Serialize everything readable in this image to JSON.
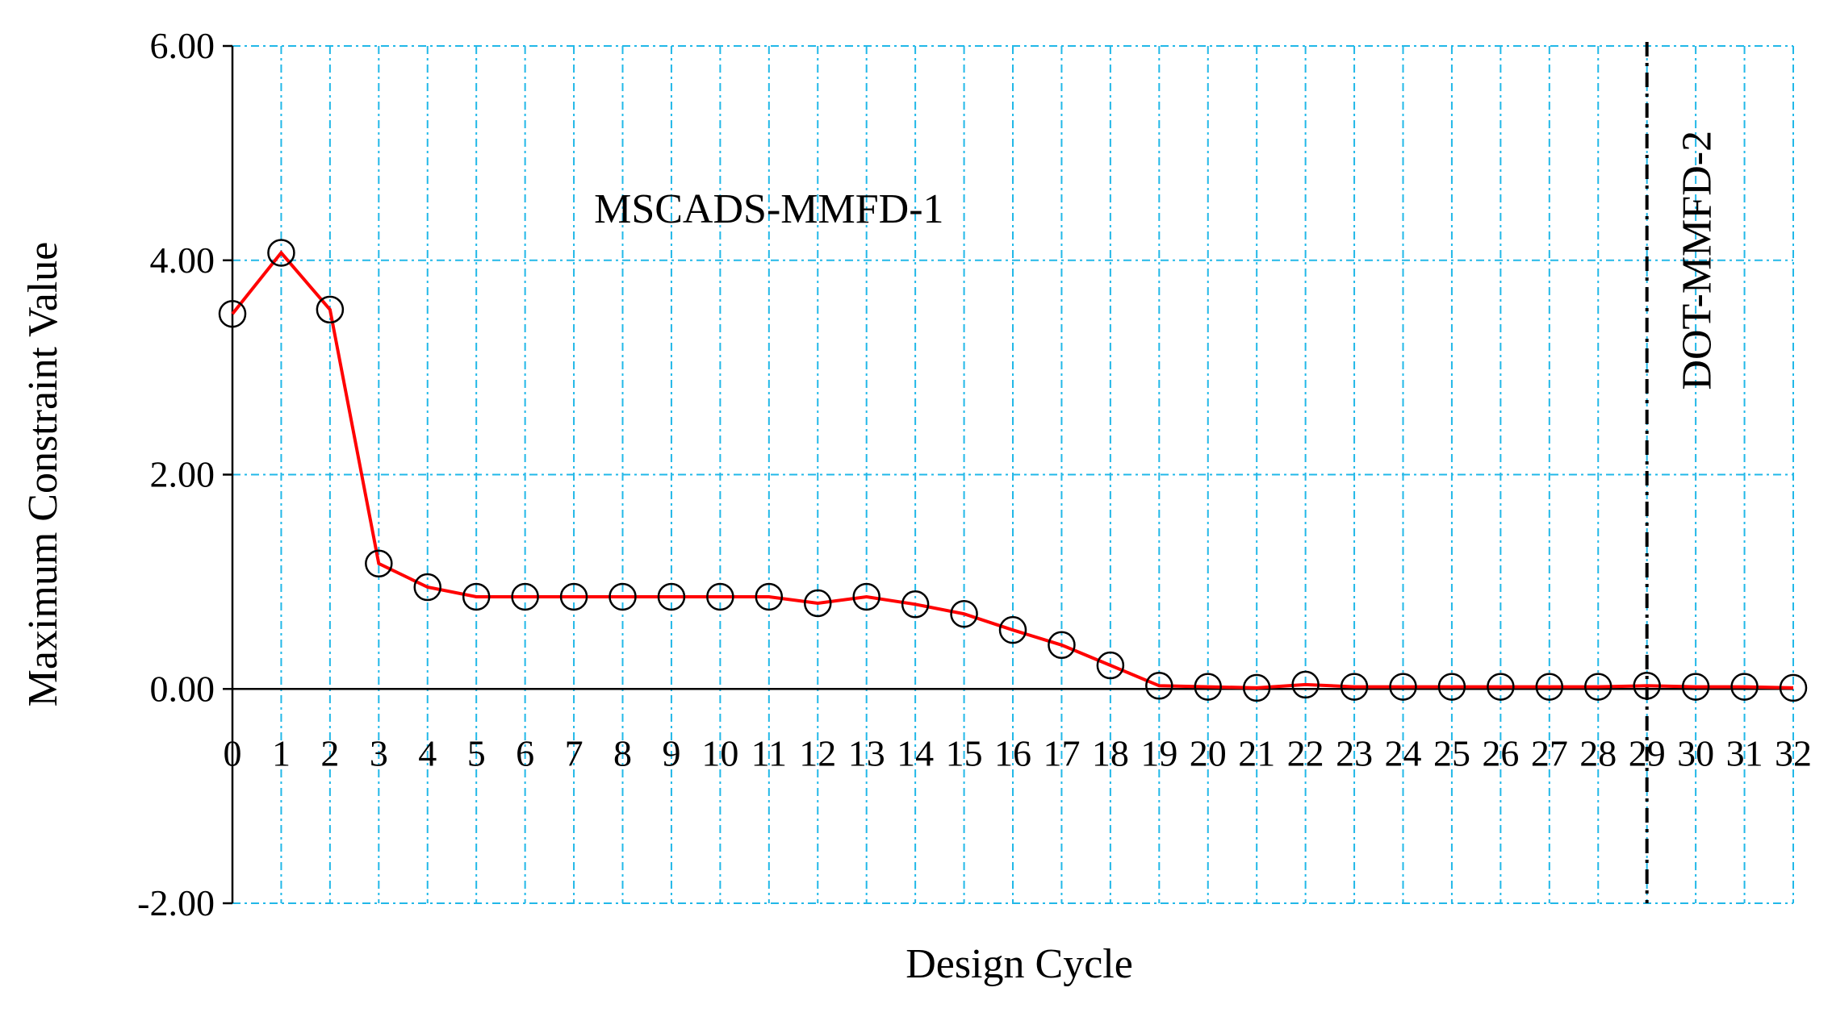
{
  "chart_data": {
    "type": "line",
    "title": "",
    "xlabel": "Design Cycle",
    "ylabel": "Maximum Constraint Value",
    "x": [
      0,
      1,
      2,
      3,
      4,
      5,
      6,
      7,
      8,
      9,
      10,
      11,
      12,
      13,
      14,
      15,
      16,
      17,
      18,
      19,
      20,
      21,
      22,
      23,
      24,
      25,
      26,
      27,
      28,
      29,
      30,
      31,
      32
    ],
    "series": [
      {
        "values": [
          3.5,
          4.07,
          3.54,
          1.17,
          0.95,
          0.86,
          0.86,
          0.86,
          0.86,
          0.86,
          0.86,
          0.86,
          0.8,
          0.86,
          0.79,
          0.7,
          0.55,
          0.41,
          0.22,
          0.03,
          0.02,
          0.01,
          0.04,
          0.02,
          0.02,
          0.02,
          0.02,
          0.02,
          0.02,
          0.03,
          0.02,
          0.02,
          0.01
        ],
        "color": "#ff0000",
        "marker": "open-circle"
      }
    ],
    "xlim": [
      0,
      32
    ],
    "ylim": [
      -2,
      6
    ],
    "y_ticks": [
      6,
      4,
      2,
      0,
      -2
    ],
    "y_tick_labels": [
      "6.00",
      "4.00",
      "2.00",
      "0.00",
      "-2.00"
    ],
    "x_tick_labels": [
      "0",
      "1",
      "2",
      "3",
      "4",
      "5",
      "6",
      "7",
      "8",
      "9",
      "10",
      "11",
      "12",
      "13",
      "14",
      "15",
      "16",
      "17",
      "18",
      "19",
      "20",
      "21",
      "22",
      "23",
      "24",
      "25",
      "26",
      "27",
      "28",
      "29",
      "30",
      "31",
      "32"
    ],
    "grid": true,
    "annotations": [
      {
        "text": "MSCADS-MMFD-1",
        "x": 11,
        "y": 4.35
      },
      {
        "text": "DOT-MMFD-2",
        "x": 30.3,
        "y": 4.0,
        "rotated": true
      }
    ],
    "divider": {
      "x": 29,
      "style": "dash-dot"
    },
    "colors": {
      "grid": "#22b8e8",
      "line": "#ff0000",
      "axis": "#000000"
    }
  }
}
